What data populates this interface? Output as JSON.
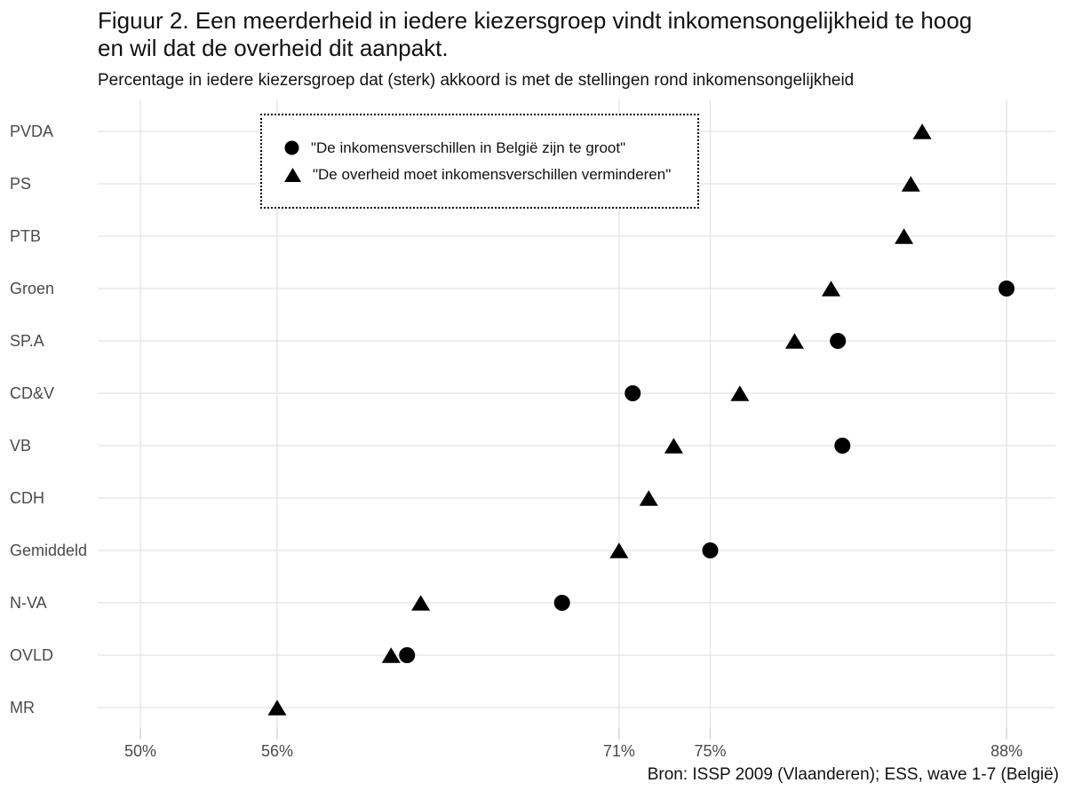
{
  "header": {
    "title_line1": "Figuur 2. Een meerderheid in iedere kiezersgroep vindt inkomensongelijkheid te hoog",
    "title_line2": "en wil dat de overheid dit aanpakt.",
    "subtitle": "Percentage in iedere kiezersgroep dat (sterk) akkoord is met de stellingen rond inkomensongelijkheid"
  },
  "footer": {
    "caption": "Bron: ISSP 2009 (Vlaanderen); ESS, wave 1-7 (België)"
  },
  "colors": {
    "marker": "#000000",
    "gridline": "#e3e3e3",
    "tick_mark": "#d6d6d6",
    "axis_text": "#4a4a4a",
    "text": "#121212",
    "background": "#ffffff"
  },
  "chart_data": {
    "type": "scatter",
    "orientation": "horizontal-dot-plot",
    "title": "Figuur 2. Een meerderheid in iedere kiezersgroep vindt inkomensongelijkheid te hoog en wil dat de overheid dit aanpakt.",
    "subtitle": "Percentage in iedere kiezersgroep dat (sterk) akkoord is met de stellingen rond inkomensongelijkheid",
    "caption": "Bron: ISSP 2009 (Vlaanderen); ESS, wave 1-7 (België)",
    "categories": [
      "PVDA",
      "PS",
      "PTB",
      "Groen",
      "SP.A",
      "CD&V",
      "VB",
      "CDH",
      "Gemiddeld",
      "N-VA",
      "OVLD",
      "MR"
    ],
    "x_unit": "%",
    "x_domain": [
      48.1,
      90.1
    ],
    "x_ticks": [
      50,
      56,
      71,
      75,
      88
    ],
    "x_tick_labels": [
      "50%",
      "56%",
      "71%",
      "75%",
      "88%"
    ],
    "grid": true,
    "legend_position": "inside-top-left",
    "series": [
      {
        "name": "\"De inkomensverschillen in België zijn te groot\"",
        "marker": "circle",
        "values": [
          null,
          null,
          null,
          88,
          80.6,
          71.6,
          80.8,
          null,
          75,
          68.5,
          61.7,
          null
        ]
      },
      {
        "name": "\"De overheid moet inkomensverschillen verminderen\"",
        "marker": "triangle",
        "values": [
          84.3,
          83.8,
          83.5,
          80.3,
          78.7,
          76.3,
          73.4,
          72.3,
          71,
          62.3,
          61,
          56
        ]
      }
    ]
  }
}
